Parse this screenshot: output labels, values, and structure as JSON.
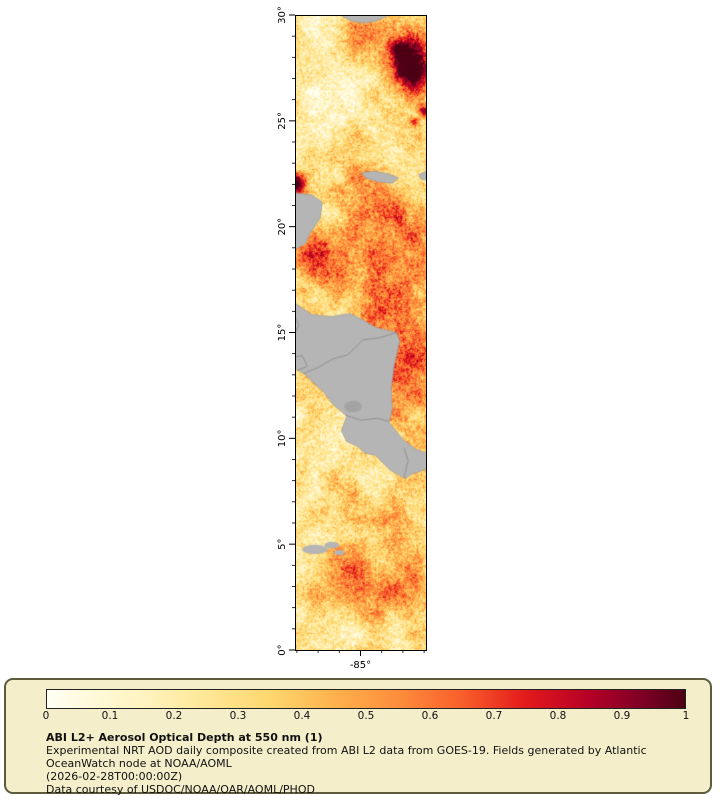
{
  "legend": {
    "title": "ABI L2+ Aerosol Optical Depth at 550 nm (1)",
    "description": "Experimental NRT AOD daily composite created from ABI L2 data from GOES-19. Fields generated by Atlantic OceanWatch node at NOAA/AOML",
    "timestamp": "(2026-02-28T00:00:00Z)",
    "credit": "Data courtesy of USDOC/NOAA/OAR/AOML/PHOD",
    "bg": "#f5eecb",
    "border": "#5c5c3d"
  },
  "chart_data": {
    "type": "heatmap",
    "title": "ABI L2+ Aerosol Optical Depth at 550 nm (1)",
    "variable": "Aerosol Optical Depth at 550 nm",
    "lat_range": [
      0,
      30
    ],
    "lon_range": [
      -88.09,
      -81.91
    ],
    "y_ticks": [
      {
        "v": 30,
        "label": "30°"
      },
      {
        "v": 25,
        "label": "25°"
      },
      {
        "v": 20,
        "label": "20°"
      },
      {
        "v": 15,
        "label": "15°"
      },
      {
        "v": 10,
        "label": "10°"
      },
      {
        "v": 5,
        "label": "5°"
      },
      {
        "v": 0,
        "label": "0°"
      }
    ],
    "x_ticks": [
      {
        "v": -85,
        "label": "-85°"
      }
    ],
    "y_minor_step": 1,
    "x_minor_step": 1,
    "colorbar": {
      "min": 0,
      "max": 1,
      "tick_labels": [
        "0",
        "0.1",
        "0.2",
        "0.3",
        "0.4",
        "0.5",
        "0.6",
        "0.7",
        "0.8",
        "0.9",
        "1"
      ],
      "stops": [
        {
          "v": 0.0,
          "c": "#fffff5"
        },
        {
          "v": 0.05,
          "c": "#fffbe0"
        },
        {
          "v": 0.15,
          "c": "#fff3c0"
        },
        {
          "v": 0.25,
          "c": "#ffe796"
        },
        {
          "v": 0.35,
          "c": "#fed76e"
        },
        {
          "v": 0.45,
          "c": "#feb24c"
        },
        {
          "v": 0.55,
          "c": "#fd8d3c"
        },
        {
          "v": 0.65,
          "c": "#f95f2b"
        },
        {
          "v": 0.75,
          "c": "#e31a1c"
        },
        {
          "v": 0.85,
          "c": "#b50026"
        },
        {
          "v": 0.93,
          "c": "#800026"
        },
        {
          "v": 1.0,
          "c": "#4d0014"
        }
      ]
    },
    "field": {
      "base": 0.3,
      "reg_amp": 0.26,
      "fine_amp": 0.12,
      "speckle": 0.08,
      "noise_scale": 0.05,
      "features": [
        [
          -82.6,
          27.6,
          0.65,
          0.85,
          0.95
        ],
        [
          -83.2,
          28.35,
          0.35,
          0.3,
          0.45
        ],
        [
          -84.6,
          28.9,
          1.3,
          0.8,
          0.18
        ],
        [
          -87.3,
          29.5,
          0.9,
          0.7,
          -0.12
        ],
        [
          -86.3,
          27.0,
          1.2,
          1.5,
          -0.1
        ],
        [
          -86.9,
          25.0,
          1.0,
          1.2,
          -0.12
        ],
        [
          -82.0,
          25.45,
          0.18,
          0.22,
          0.6
        ],
        [
          -82.45,
          24.95,
          0.15,
          0.15,
          0.45
        ],
        [
          -85.0,
          22.8,
          1.5,
          1.0,
          0.1
        ],
        [
          -88.0,
          22.05,
          0.28,
          0.33,
          0.8
        ],
        [
          -84.2,
          21.0,
          1.0,
          0.8,
          0.15
        ],
        [
          -82.8,
          20.3,
          0.9,
          0.7,
          0.18
        ],
        [
          -84.9,
          18.35,
          2.4,
          1.1,
          0.3
        ],
        [
          -87.3,
          18.6,
          0.8,
          0.7,
          0.25
        ],
        [
          -83.4,
          16.3,
          1.0,
          0.9,
          0.22
        ],
        [
          -83.0,
          13.4,
          1.2,
          1.6,
          0.36
        ],
        [
          -86.8,
          10.3,
          1.2,
          0.9,
          -0.1
        ],
        [
          -85.4,
          3.2,
          1.3,
          1.1,
          0.28
        ],
        [
          -83.5,
          5.6,
          1.1,
          0.9,
          0.18
        ],
        [
          -83.0,
          2.8,
          0.9,
          0.9,
          0.22
        ],
        [
          -86.5,
          1.2,
          1.6,
          1.0,
          -0.1
        ]
      ]
    },
    "land_color": "#b5b5b5",
    "land_edge": "#969696",
    "border_color": "#828282",
    "lake_color": "#a3a3a3",
    "land_polygons": {
      "florida_panhandle": [
        [
          -86.05,
          30.05
        ],
        [
          -85.45,
          29.72
        ],
        [
          -84.85,
          29.62
        ],
        [
          -84.25,
          29.72
        ],
        [
          -83.75,
          29.95
        ],
        [
          -83.55,
          30.05
        ]
      ],
      "western_cuba": [
        [
          -84.95,
          22.55
        ],
        [
          -84.35,
          22.62
        ],
        [
          -83.7,
          22.5
        ],
        [
          -83.2,
          22.3
        ],
        [
          -83.5,
          22.05
        ],
        [
          -84.2,
          22.12
        ],
        [
          -84.75,
          22.3
        ]
      ],
      "cuba_east_bit": [
        [
          -82.25,
          22.45
        ],
        [
          -81.9,
          22.62
        ],
        [
          -81.9,
          22.2
        ],
        [
          -82.15,
          22.25
        ]
      ],
      "yucatan": [
        [
          -88.12,
          21.6
        ],
        [
          -87.3,
          21.5
        ],
        [
          -86.8,
          21.15
        ],
        [
          -86.9,
          20.4
        ],
        [
          -87.4,
          19.65
        ],
        [
          -87.6,
          19.2
        ],
        [
          -88.12,
          18.9
        ]
      ],
      "central_america": [
        [
          -88.12,
          16.4
        ],
        [
          -87.3,
          15.85
        ],
        [
          -86.4,
          15.75
        ],
        [
          -85.5,
          15.9
        ],
        [
          -84.9,
          15.6
        ],
        [
          -84.3,
          15.25
        ],
        [
          -83.3,
          15.0
        ],
        [
          -83.15,
          14.6
        ],
        [
          -83.4,
          13.5
        ],
        [
          -83.55,
          12.4
        ],
        [
          -83.5,
          11.4
        ],
        [
          -83.65,
          10.75
        ],
        [
          -83.0,
          9.95
        ],
        [
          -82.4,
          9.5
        ],
        [
          -81.88,
          9.3
        ],
        [
          -81.88,
          8.55
        ],
        [
          -82.6,
          8.3
        ],
        [
          -82.9,
          8.1
        ],
        [
          -83.6,
          8.5
        ],
        [
          -84.3,
          9.2
        ],
        [
          -84.8,
          9.3
        ],
        [
          -85.1,
          9.6
        ],
        [
          -85.65,
          9.85
        ],
        [
          -85.9,
          10.35
        ],
        [
          -85.65,
          11.05
        ],
        [
          -86.3,
          11.6
        ],
        [
          -86.75,
          12.2
        ],
        [
          -87.35,
          12.75
        ],
        [
          -87.65,
          13.05
        ],
        [
          -88.12,
          13.3
        ]
      ]
    },
    "country_borders": [
      [
        [
          -87.7,
          13.05
        ],
        [
          -87.0,
          13.35
        ],
        [
          -86.3,
          13.75
        ],
        [
          -85.6,
          13.95
        ],
        [
          -84.9,
          14.65
        ],
        [
          -84.1,
          14.75
        ],
        [
          -83.3,
          15.0
        ]
      ],
      [
        [
          -85.7,
          11.1
        ],
        [
          -85.0,
          10.85
        ],
        [
          -84.2,
          10.95
        ],
        [
          -83.65,
          10.8
        ]
      ],
      [
        [
          -82.95,
          9.55
        ],
        [
          -82.75,
          8.95
        ],
        [
          -82.95,
          8.15
        ]
      ],
      [
        [
          -88.12,
          13.85
        ],
        [
          -87.75,
          13.9
        ],
        [
          -87.5,
          13.4
        ],
        [
          -88.0,
          13.2
        ]
      ],
      [
        [
          -88.12,
          15.75
        ],
        [
          -87.9,
          15.35
        ],
        [
          -88.12,
          14.9
        ]
      ]
    ],
    "lake": [
      -85.35,
      11.5,
      0.42,
      0.27
    ],
    "cloud_patches": [
      [
        -87.15,
        4.75,
        0.6,
        0.22
      ],
      [
        -86.35,
        4.95,
        0.35,
        0.16
      ],
      [
        -86.0,
        4.6,
        0.25,
        0.12
      ]
    ]
  }
}
